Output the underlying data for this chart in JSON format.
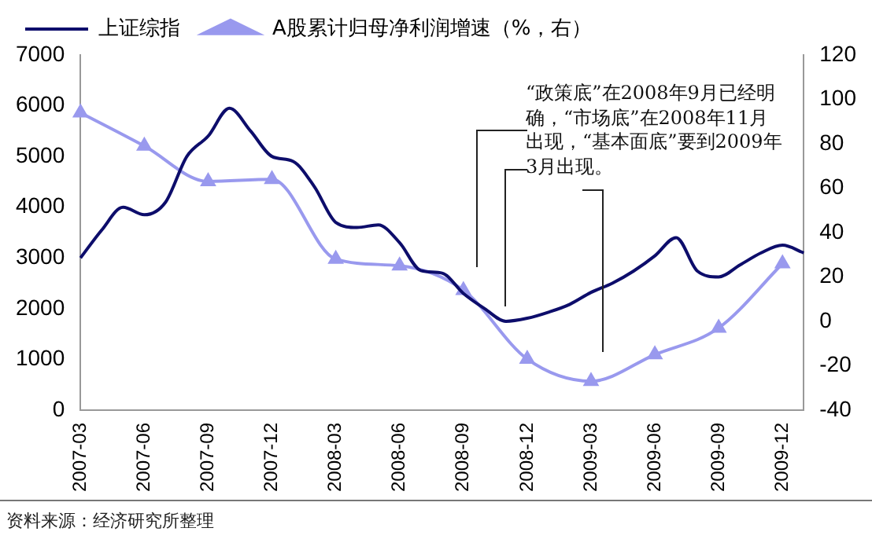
{
  "chart_data": {
    "type": "line",
    "legend": "top",
    "grid": false,
    "ylim": [
      0,
      7000
    ],
    "yticks": [
      0,
      1000,
      2000,
      3000,
      4000,
      5000,
      6000,
      7000
    ],
    "y2lim": [
      -40,
      120
    ],
    "y2ticks": [
      -40,
      -20,
      0,
      20,
      40,
      60,
      80,
      100,
      120
    ],
    "categories": [
      "2007-03",
      null,
      null,
      "2007-06",
      null,
      null,
      "2007-09",
      null,
      null,
      "2007-12",
      null,
      null,
      "2008-03",
      null,
      null,
      "2008-06",
      null,
      null,
      "2008-09",
      null,
      null,
      "2008-12",
      null,
      null,
      "2009-03",
      null,
      null,
      "2009-06",
      null,
      null,
      "2009-09",
      null,
      null,
      "2009-12",
      null
    ],
    "series": [
      {
        "name": "上证综指",
        "color": "#0d0d6b",
        "marker": "none",
        "values": [
          3000,
          3550,
          4000,
          3850,
          4100,
          5000,
          5400,
          5950,
          5500,
          5000,
          4900,
          4400,
          3700,
          3600,
          3650,
          3300,
          2750,
          2700,
          2300,
          2000,
          1750,
          1810,
          1930,
          2085,
          2320,
          2500,
          2740,
          3040,
          3400,
          2740,
          2625,
          2860,
          3100,
          3250,
          3100
        ]
      },
      {
        "name": "A股累计归母净利润增速（%，右）",
        "color": "#9999ee",
        "marker": "triangle",
        "axis": "y2",
        "values": [
          94,
          null,
          null,
          79,
          null,
          null,
          63,
          null,
          null,
          64,
          null,
          null,
          28,
          null,
          null,
          25,
          null,
          null,
          14,
          null,
          null,
          -17,
          null,
          null,
          -27,
          null,
          null,
          -15,
          null,
          null,
          -3,
          null,
          null,
          26,
          null
        ]
      }
    ],
    "annotations": [
      "“政策底”在2008年9月已经明确，“市场底”在2008年11月出现，“基本面底”要到2009年3月出现。",
      "资料来源：经济研究所整理"
    ]
  }
}
